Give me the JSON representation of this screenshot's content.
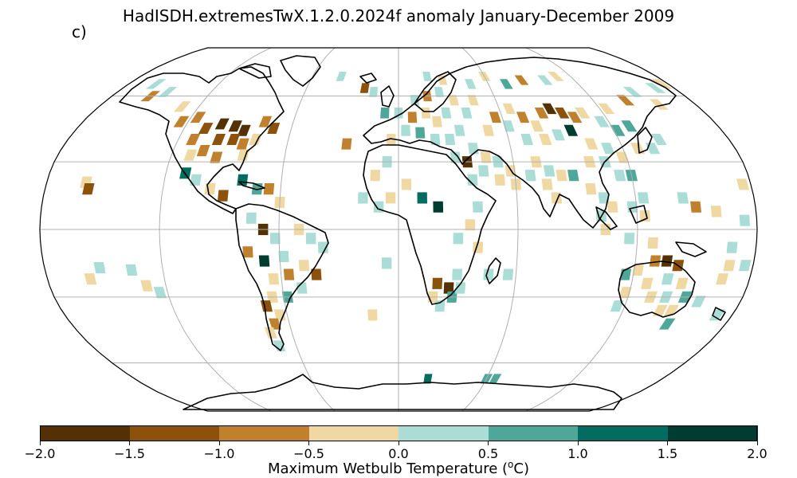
{
  "title": "HadISDH.extremesTwX.1.2.0.2024f anomaly January-December 2009",
  "panel_label": "c)",
  "colorbar": {
    "label_prefix": "Maximum Wetbulb Temperature (",
    "label_sup": "o",
    "label_suffix": "C)",
    "ticks": [
      "−2.0",
      "−1.5",
      "−1.0",
      "−0.5",
      "0.0",
      "0.5",
      "1.0",
      "1.5",
      "2.0"
    ],
    "colors": [
      "#543005",
      "#8c510a",
      "#bf812d",
      "#f0d8a3",
      "#a9ddd6",
      "#4fa79a",
      "#016c5f",
      "#003c30"
    ]
  },
  "chart_data": {
    "type": "heatmap",
    "projection": "Robinson",
    "variable": "Maximum Wetbulb Temperature anomaly",
    "units": "°C",
    "period": "January-December 2009",
    "value_range": [
      -2.0,
      2.0
    ],
    "bin_edges": [
      -2.0,
      -1.5,
      -1.0,
      -0.5,
      0.0,
      0.5,
      1.0,
      1.5,
      2.0
    ],
    "graticule": {
      "meridians_deg": [
        -120,
        -60,
        0,
        60,
        120
      ],
      "parallels_deg": [
        -60,
        -30,
        0,
        30,
        60
      ]
    },
    "cells": [
      {
        "lon": -100,
        "lat": 47,
        "v": -1.7
      },
      {
        "lon": -92,
        "lat": 46,
        "v": -1.8
      },
      {
        "lon": -86,
        "lat": 44,
        "v": -1.6
      },
      {
        "lon": -108,
        "lat": 45,
        "v": -1.2
      },
      {
        "lon": -98,
        "lat": 40,
        "v": -1.3
      },
      {
        "lon": -90,
        "lat": 40,
        "v": -1.2
      },
      {
        "lon": -116,
        "lat": 50,
        "v": -0.8
      },
      {
        "lon": -124,
        "lat": 48,
        "v": -0.7
      },
      {
        "lon": -112,
        "lat": 40,
        "v": -0.6
      },
      {
        "lon": -104,
        "lat": 35,
        "v": -0.8
      },
      {
        "lon": -96,
        "lat": 32,
        "v": -0.6
      },
      {
        "lon": -84,
        "lat": 38,
        "v": -0.7
      },
      {
        "lon": -78,
        "lat": 40,
        "v": -0.3
      },
      {
        "lon": -82,
        "lat": 33,
        "v": -0.3
      },
      {
        "lon": -110,
        "lat": 33,
        "v": -0.2
      },
      {
        "lon": -70,
        "lat": 45,
        "v": -1.1
      },
      {
        "lon": -76,
        "lat": 48,
        "v": -0.9
      },
      {
        "lon": -130,
        "lat": 55,
        "v": -0.5
      },
      {
        "lon": -148,
        "lat": 62,
        "v": 0.3
      },
      {
        "lon": -156,
        "lat": 60,
        "v": -0.6
      },
      {
        "lon": -162,
        "lat": 66,
        "v": 0.4
      },
      {
        "lon": -110,
        "lat": 25,
        "v": 1.2
      },
      {
        "lon": -104,
        "lat": 22,
        "v": 0.4
      },
      {
        "lon": -96,
        "lat": 18,
        "v": -0.4
      },
      {
        "lon": -89,
        "lat": 15,
        "v": -1.1
      },
      {
        "lon": -80,
        "lat": 22,
        "v": 1.4
      },
      {
        "lon": -72,
        "lat": 18,
        "v": 0.6
      },
      {
        "lon": -66,
        "lat": 18,
        "v": -0.8
      },
      {
        "lon": -60,
        "lat": 12,
        "v": -0.3
      },
      {
        "lon": -160,
        "lat": 21,
        "v": -0.3
      },
      {
        "lon": -158,
        "lat": 18,
        "v": -1.2
      },
      {
        "lon": -74,
        "lat": 5,
        "v": 0.3
      },
      {
        "lon": -68,
        "lat": 0,
        "v": -1.7
      },
      {
        "lon": -62,
        "lat": -4,
        "v": 0.3
      },
      {
        "lon": -50,
        "lat": 0,
        "v": -0.3
      },
      {
        "lon": -44,
        "lat": -4,
        "v": 0.3
      },
      {
        "lon": -38,
        "lat": -8,
        "v": 0.4
      },
      {
        "lon": -76,
        "lat": -10,
        "v": -0.8
      },
      {
        "lon": -68,
        "lat": -14,
        "v": 1.6
      },
      {
        "lon": -58,
        "lat": -12,
        "v": 0.3
      },
      {
        "lon": -48,
        "lat": -16,
        "v": -0.3
      },
      {
        "lon": -42,
        "lat": -20,
        "v": -1.2
      },
      {
        "lon": -56,
        "lat": -20,
        "v": -0.8
      },
      {
        "lon": -64,
        "lat": -22,
        "v": -0.3
      },
      {
        "lon": -50,
        "lat": -26,
        "v": 0.4
      },
      {
        "lon": -58,
        "lat": -30,
        "v": 0.5
      },
      {
        "lon": -66,
        "lat": -30,
        "v": -0.4
      },
      {
        "lon": -70,
        "lat": -34,
        "v": -1.2
      },
      {
        "lon": -64,
        "lat": -38,
        "v": -0.3
      },
      {
        "lon": -68,
        "lat": -42,
        "v": -0.8
      },
      {
        "lon": -72,
        "lat": -46,
        "v": -0.4
      },
      {
        "lon": -70,
        "lat": -52,
        "v": 0.3
      },
      {
        "lon": -152,
        "lat": -17,
        "v": 0.3
      },
      {
        "lon": -158,
        "lat": -22,
        "v": -0.2
      },
      {
        "lon": -136,
        "lat": -18,
        "v": 0.3
      },
      {
        "lon": -130,
        "lat": -25,
        "v": -0.3
      },
      {
        "lon": -124,
        "lat": -28,
        "v": 0.4
      },
      {
        "lon": -22,
        "lat": 64,
        "v": -1.2
      },
      {
        "lon": -16,
        "lat": 62,
        "v": 0.3
      },
      {
        "lon": -40,
        "lat": 70,
        "v": 0.4
      },
      {
        "lon": -28,
        "lat": 38,
        "v": -0.6
      },
      {
        "lon": -8,
        "lat": 52,
        "v": 0.5
      },
      {
        "lon": 0,
        "lat": 52,
        "v": 0.4
      },
      {
        "lon": 8,
        "lat": 50,
        "v": -0.6
      },
      {
        "lon": 16,
        "lat": 52,
        "v": -0.3
      },
      {
        "lon": 22,
        "lat": 48,
        "v": -0.3
      },
      {
        "lon": 28,
        "lat": 52,
        "v": 0.3
      },
      {
        "lon": -4,
        "lat": 40,
        "v": -0.3
      },
      {
        "lon": 4,
        "lat": 44,
        "v": 0.4
      },
      {
        "lon": 12,
        "lat": 43,
        "v": 0.6
      },
      {
        "lon": 20,
        "lat": 40,
        "v": 0.4
      },
      {
        "lon": 28,
        "lat": 40,
        "v": 0.3
      },
      {
        "lon": 34,
        "lat": 44,
        "v": 0.4
      },
      {
        "lon": 10,
        "lat": 58,
        "v": 0.3
      },
      {
        "lon": 18,
        "lat": 60,
        "v": -0.6
      },
      {
        "lon": 26,
        "lat": 62,
        "v": 0.4
      },
      {
        "lon": 34,
        "lat": 58,
        "v": -0.3
      },
      {
        "lon": 40,
        "lat": 52,
        "v": 0.4
      },
      {
        "lon": 46,
        "lat": 58,
        "v": -0.3
      },
      {
        "lon": 20,
        "lat": 70,
        "v": 0.4
      },
      {
        "lon": 30,
        "lat": 68,
        "v": -0.4
      },
      {
        "lon": 48,
        "lat": 66,
        "v": 0.3
      },
      {
        "lon": 50,
        "lat": 44,
        "v": -0.3
      },
      {
        "lon": 56,
        "lat": 50,
        "v": -0.8
      },
      {
        "lon": 62,
        "lat": 46,
        "v": 0.4
      },
      {
        "lon": 66,
        "lat": 54,
        "v": -0.3
      },
      {
        "lon": 72,
        "lat": 50,
        "v": -0.7
      },
      {
        "lon": 78,
        "lat": 46,
        "v": -0.3
      },
      {
        "lon": 84,
        "lat": 52,
        "v": -0.8
      },
      {
        "lon": 90,
        "lat": 54,
        "v": -1.6
      },
      {
        "lon": 96,
        "lat": 52,
        "v": -1.4
      },
      {
        "lon": 102,
        "lat": 50,
        "v": -0.8
      },
      {
        "lon": 108,
        "lat": 52,
        "v": -0.4
      },
      {
        "lon": 116,
        "lat": 48,
        "v": 0.3
      },
      {
        "lon": 122,
        "lat": 44,
        "v": 0.5
      },
      {
        "lon": 130,
        "lat": 46,
        "v": 0.8
      },
      {
        "lon": 124,
        "lat": 54,
        "v": -0.4
      },
      {
        "lon": 140,
        "lat": 58,
        "v": -0.6
      },
      {
        "lon": 150,
        "lat": 62,
        "v": 0.4
      },
      {
        "lon": 158,
        "lat": 56,
        "v": -0.3
      },
      {
        "lon": 168,
        "lat": 64,
        "v": 0.4
      },
      {
        "lon": 176,
        "lat": 66,
        "v": -0.3
      },
      {
        "lon": 72,
        "lat": 66,
        "v": 0.5
      },
      {
        "lon": 84,
        "lat": 68,
        "v": -0.9
      },
      {
        "lon": 100,
        "lat": 68,
        "v": 0.3
      },
      {
        "lon": 110,
        "lat": 70,
        "v": -0.3
      },
      {
        "lon": 60,
        "lat": 70,
        "v": -0.4
      },
      {
        "lon": 96,
        "lat": 44,
        "v": 1.7
      },
      {
        "lon": 88,
        "lat": 42,
        "v": 0.3
      },
      {
        "lon": 80,
        "lat": 40,
        "v": -0.3
      },
      {
        "lon": 70,
        "lat": 40,
        "v": 0.3
      },
      {
        "lon": 104,
        "lat": 38,
        "v": -0.4
      },
      {
        "lon": 112,
        "lat": 36,
        "v": 0.4
      },
      {
        "lon": 118,
        "lat": 32,
        "v": -0.3
      },
      {
        "lon": 108,
        "lat": 30,
        "v": 0.3
      },
      {
        "lon": 100,
        "lat": 30,
        "v": -0.3
      },
      {
        "lon": 114,
        "lat": 24,
        "v": 0.4
      },
      {
        "lon": 120,
        "lat": 24,
        "v": 0.6
      },
      {
        "lon": 128,
        "lat": 36,
        "v": -0.3
      },
      {
        "lon": 136,
        "lat": 36,
        "v": 0.4
      },
      {
        "lon": 142,
        "lat": 40,
        "v": 0.3
      },
      {
        "lon": 40,
        "lat": 36,
        "v": 0.3
      },
      {
        "lon": 46,
        "lat": 32,
        "v": -0.2
      },
      {
        "lon": 52,
        "lat": 30,
        "v": 0.3
      },
      {
        "lon": 58,
        "lat": 26,
        "v": -0.3
      },
      {
        "lon": 36,
        "lat": 30,
        "v": -1.8
      },
      {
        "lon": 30,
        "lat": 32,
        "v": 0.4
      },
      {
        "lon": 44,
        "lat": 26,
        "v": 0.4
      },
      {
        "lon": 52,
        "lat": 22,
        "v": -0.3
      },
      {
        "lon": 38,
        "lat": 22,
        "v": 0.3
      },
      {
        "lon": 72,
        "lat": 30,
        "v": -0.3
      },
      {
        "lon": 78,
        "lat": 26,
        "v": 0.3
      },
      {
        "lon": 84,
        "lat": 24,
        "v": -0.3
      },
      {
        "lon": 76,
        "lat": 20,
        "v": -0.3
      },
      {
        "lon": 80,
        "lat": 14,
        "v": -0.3
      },
      {
        "lon": 90,
        "lat": 24,
        "v": 0.5
      },
      {
        "lon": 98,
        "lat": 18,
        "v": -0.3
      },
      {
        "lon": 104,
        "lat": 14,
        "v": 0.3
      },
      {
        "lon": 102,
        "lat": 6,
        "v": 0.4
      },
      {
        "lon": 108,
        "lat": 10,
        "v": -0.3
      },
      {
        "lon": 118,
        "lat": 10,
        "v": 0.3
      },
      {
        "lon": 124,
        "lat": 14,
        "v": 0.4
      },
      {
        "lon": 124,
        "lat": 6,
        "v": -0.3
      },
      {
        "lon": 144,
        "lat": 14,
        "v": 0.3
      },
      {
        "lon": 150,
        "lat": 10,
        "v": -0.8
      },
      {
        "lon": 104,
        "lat": 0,
        "v": -0.3
      },
      {
        "lon": 116,
        "lat": -4,
        "v": 0.3
      },
      {
        "lon": 128,
        "lat": -6,
        "v": -0.3
      },
      {
        "lon": 60,
        "lat": 20,
        "v": -0.3
      },
      {
        "lon": 68,
        "lat": 24,
        "v": 0.3
      },
      {
        "lon": -6,
        "lat": 30,
        "v": 0.4
      },
      {
        "lon": -12,
        "lat": 24,
        "v": -0.3
      },
      {
        "lon": 4,
        "lat": 20,
        "v": -0.3
      },
      {
        "lon": 12,
        "lat": 14,
        "v": 1.2
      },
      {
        "lon": 20,
        "lat": 10,
        "v": 1.7
      },
      {
        "lon": -18,
        "lat": 14,
        "v": 0.3
      },
      {
        "lon": -10,
        "lat": 10,
        "v": 0.4
      },
      {
        "lon": -4,
        "lat": 14,
        "v": -0.3
      },
      {
        "lon": 40,
        "lat": 10,
        "v": 0.3
      },
      {
        "lon": 36,
        "lat": 2,
        "v": -0.3
      },
      {
        "lon": 30,
        "lat": -4,
        "v": 0.3
      },
      {
        "lon": 40,
        "lat": -8,
        "v": -0.3
      },
      {
        "lon": 30,
        "lat": -20,
        "v": 0.4
      },
      {
        "lon": 26,
        "lat": -26,
        "v": -1.6
      },
      {
        "lon": 20,
        "lat": -24,
        "v": -1.3
      },
      {
        "lon": 28,
        "lat": -30,
        "v": 0.5
      },
      {
        "lon": 32,
        "lat": -26,
        "v": 0.3
      },
      {
        "lon": 18,
        "lat": -30,
        "v": -0.3
      },
      {
        "lon": 22,
        "lat": -34,
        "v": 0.4
      },
      {
        "lon": 46,
        "lat": -20,
        "v": 0.3
      },
      {
        "lon": 56,
        "lat": -20,
        "v": 0.3
      },
      {
        "lon": -6,
        "lat": -15,
        "v": 0.4
      },
      {
        "lon": -14,
        "lat": -38,
        "v": -0.3
      },
      {
        "lon": 116,
        "lat": -20,
        "v": 0.5
      },
      {
        "lon": 122,
        "lat": -18,
        "v": -0.3
      },
      {
        "lon": 130,
        "lat": -14,
        "v": -0.8
      },
      {
        "lon": 136,
        "lat": -14,
        "v": -1.6
      },
      {
        "lon": 142,
        "lat": -16,
        "v": -1.2
      },
      {
        "lon": 138,
        "lat": -22,
        "v": 0.3
      },
      {
        "lon": 128,
        "lat": -24,
        "v": -0.3
      },
      {
        "lon": 118,
        "lat": -28,
        "v": -0.4
      },
      {
        "lon": 116,
        "lat": -34,
        "v": 0.3
      },
      {
        "lon": 132,
        "lat": -30,
        "v": -0.3
      },
      {
        "lon": 140,
        "lat": -30,
        "v": 0.3
      },
      {
        "lon": 146,
        "lat": -24,
        "v": -0.4
      },
      {
        "lon": 150,
        "lat": -30,
        "v": 0.5
      },
      {
        "lon": 146,
        "lat": -36,
        "v": -0.3
      },
      {
        "lon": 140,
        "lat": -36,
        "v": -0.5
      },
      {
        "lon": 148,
        "lat": -42,
        "v": 0.6
      },
      {
        "lon": 158,
        "lat": -32,
        "v": 0.3
      },
      {
        "lon": 166,
        "lat": -22,
        "v": -0.3
      },
      {
        "lon": 172,
        "lat": -38,
        "v": 0.4
      },
      {
        "lon": 176,
        "lat": -16,
        "v": 0.3
      },
      {
        "lon": 168,
        "lat": -16,
        "v": -0.3
      },
      {
        "lon": 174,
        "lat": 4,
        "v": 0.3
      },
      {
        "lon": 160,
        "lat": 8,
        "v": -0.3
      },
      {
        "lon": 176,
        "lat": 20,
        "v": -0.3
      },
      {
        "lon": 168,
        "lat": -8,
        "v": 0.4
      },
      {
        "lon": 20,
        "lat": -68,
        "v": 1.2
      },
      {
        "lon": 60,
        "lat": -68,
        "v": 0.6
      },
      {
        "lon": 66,
        "lat": -68,
        "v": 0.5
      }
    ]
  }
}
